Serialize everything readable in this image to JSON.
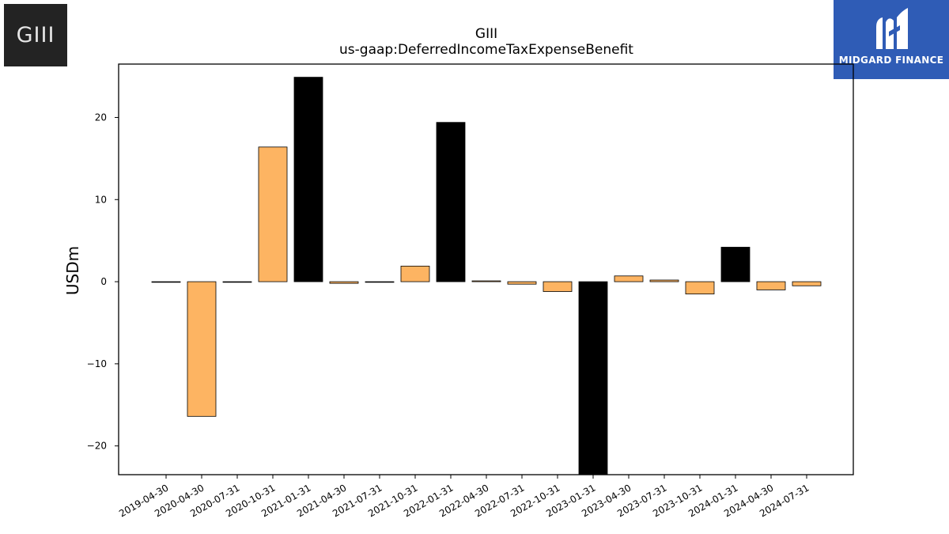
{
  "logos": {
    "left_text": "GIII",
    "right_text": "MIDGARD FINANCE",
    "right_icon": "midgard-m-monogram",
    "right_bg": "#2f5cb6",
    "left_bg": "#232323"
  },
  "chart_data": {
    "type": "bar",
    "title": "GIII",
    "subtitle": "us-gaap:DeferredIncomeTaxExpenseBenefit",
    "xlabel": "",
    "ylabel": "USDm",
    "ylim": [
      -23.5,
      26.5
    ],
    "yticks": [
      -20,
      -10,
      0,
      10,
      20
    ],
    "grid": false,
    "colors": {
      "quarter": "#fdb462",
      "annual": "#000000"
    },
    "categories": [
      "2019-04-30",
      "2020-04-30",
      "2020-07-31",
      "2020-10-31",
      "2021-01-31",
      "2021-04-30",
      "2021-07-31",
      "2021-10-31",
      "2022-01-31",
      "2022-04-30",
      "2022-07-31",
      "2022-10-31",
      "2023-01-31",
      "2023-04-30",
      "2023-07-31",
      "2023-10-31",
      "2024-01-31",
      "2024-04-30",
      "2024-07-31"
    ],
    "values": [
      -0.05,
      -16.4,
      -0.05,
      16.4,
      24.9,
      -0.2,
      -0.05,
      1.9,
      19.4,
      0.1,
      -0.3,
      -1.2,
      -23.5,
      0.7,
      0.2,
      -1.5,
      4.2,
      -1.0,
      -0.5
    ],
    "kinds": [
      "quarter",
      "quarter",
      "quarter",
      "quarter",
      "annual",
      "quarter",
      "quarter",
      "quarter",
      "annual",
      "quarter",
      "quarter",
      "quarter",
      "annual",
      "quarter",
      "quarter",
      "quarter",
      "annual",
      "quarter",
      "quarter"
    ]
  }
}
